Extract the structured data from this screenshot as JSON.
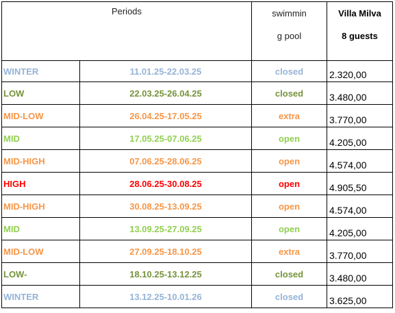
{
  "header": {
    "periods": "Periods",
    "pool_line1": "swimmin",
    "pool_line2": "g pool",
    "villa_name": "Villa Milva",
    "villa_guests": "8 guests"
  },
  "colors": {
    "WINTER": "#95b3d7",
    "LOW": "#76933c",
    "MID-LOW": "#f79646",
    "MID": "#92d050",
    "MID-HIGH": "#f79646",
    "HIGH": "#ff0000",
    "LOW-": "#76933c"
  },
  "rows": [
    {
      "season": "WINTER",
      "dates": "11.01.25-22.03.25",
      "pool": "closed",
      "price": "2.320,00"
    },
    {
      "season": "LOW",
      "dates": "22.03.25-26.04.25",
      "pool": "closed",
      "price": "3.480,00"
    },
    {
      "season": "MID-LOW",
      "dates": "26.04.25-17.05.25",
      "pool": "extra",
      "price": "3.770,00"
    },
    {
      "season": "MID",
      "dates": "17.05.25-07.06.25",
      "pool": "open",
      "price": "4.205,00"
    },
    {
      "season": "MID-HIGH",
      "dates": "07.06.25-28.06.25",
      "pool": "open",
      "price": "4.574,00"
    },
    {
      "season": "HIGH",
      "dates": "28.06.25-30.08.25",
      "pool": "open",
      "price": "4.905,50"
    },
    {
      "season": "MID-HIGH",
      "dates": "30.08.25-13.09.25",
      "pool": "open",
      "price": "4.574,00"
    },
    {
      "season": "MID",
      "dates": "13.09.25-27.09.25",
      "pool": "open",
      "price": "4.205,00"
    },
    {
      "season": "MID-LOW",
      "dates": "27.09.25-18.10.25",
      "pool": "extra",
      "price": "3.770,00"
    },
    {
      "season": "LOW-",
      "dates": "18.10.25-13.12.25",
      "pool": "closed",
      "price": "3.480,00"
    },
    {
      "season": "WINTER",
      "dates": "13.12.25-10.01.26",
      "pool": "closed",
      "price": "3.625,00"
    }
  ]
}
